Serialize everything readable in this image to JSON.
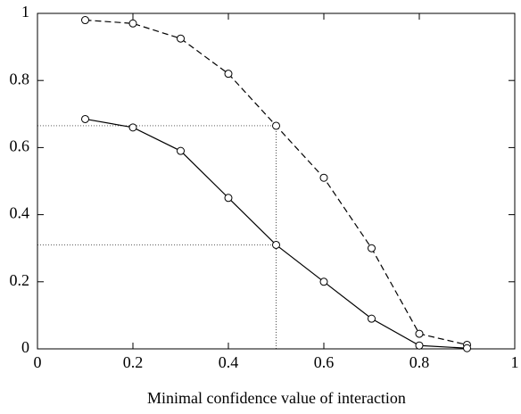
{
  "chart_data": {
    "type": "line",
    "x_label": "Minimal confidence value of interaction",
    "x": [
      0.1,
      0.2,
      0.3,
      0.4,
      0.5,
      0.6,
      0.7,
      0.8,
      0.9
    ],
    "series": [
      {
        "color": "#000000",
        "dash": "dashed",
        "values": [
          0.98,
          0.97,
          0.925,
          0.82,
          0.665,
          0.51,
          0.3,
          0.045,
          0.012
        ]
      },
      {
        "color": "#000000",
        "dash": "solid",
        "values": [
          0.685,
          0.66,
          0.59,
          0.45,
          0.31,
          0.2,
          0.09,
          0.01,
          0.002
        ]
      }
    ],
    "xlim": [
      0,
      1
    ],
    "ylim": [
      0,
      1
    ],
    "xticks": [
      0,
      0.2,
      0.4,
      0.6,
      0.8,
      1
    ],
    "yticks": [
      0,
      0.2,
      0.4,
      0.6,
      0.8,
      1
    ],
    "marker": "open-circle"
  }
}
